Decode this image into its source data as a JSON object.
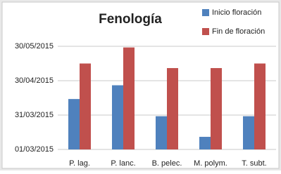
{
  "chart_data": {
    "type": "bar",
    "title": "Fenología",
    "categories": [
      "P. lag.",
      "P. lanc.",
      "B. pelec.",
      "M. polym.",
      "T. subt."
    ],
    "series": [
      {
        "name": "Inicio floración",
        "color": "#4f81bd",
        "values": [
          "2015-04-14",
          "2015-04-26",
          "2015-03-30",
          "2015-03-12",
          "2015-03-30"
        ]
      },
      {
        "name": "Fin de floración",
        "color": "#c0504d",
        "values": [
          "2015-05-15",
          "2015-05-29",
          "2015-05-11",
          "2015-05-11",
          "2015-05-15"
        ]
      }
    ],
    "ylim": [
      "2015-03-01",
      "2015-05-30"
    ],
    "yticks": [
      {
        "value": "2015-03-01",
        "label": "01/03/2015"
      },
      {
        "value": "2015-03-31",
        "label": "31/03/2015"
      },
      {
        "value": "2015-04-30",
        "label": "30/04/2015"
      },
      {
        "value": "2015-05-30",
        "label": "30/05/2015"
      }
    ],
    "grid": true,
    "legend": "top-right"
  }
}
